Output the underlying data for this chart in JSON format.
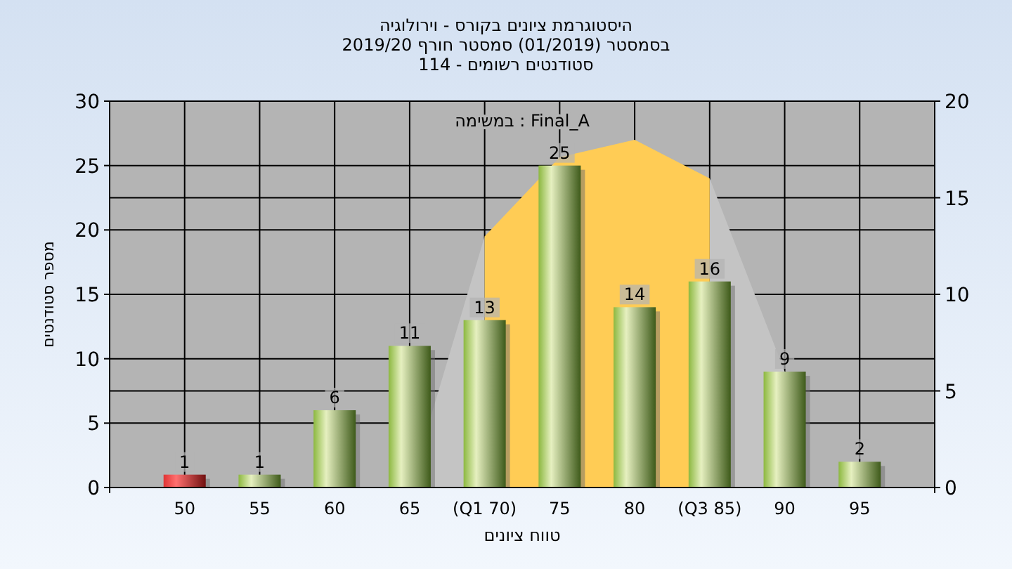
{
  "chart_data": {
    "type": "bar",
    "title": "היסטוגרמת ציונים בקורס - וירולוגיה",
    "subtitle": "בסמסטר  (01/2019)  סמסטר חורף 2019/20\nסטודנטים רשומים - 114",
    "xlabel": "טווח ציונים",
    "ylabel": "מספר סטודנטים",
    "annotations": [
      "במשימה : Final_A"
    ],
    "categories": [
      "50",
      "55",
      "60",
      "65",
      "(Q1 70)",
      "75",
      "80",
      "(Q3 85)",
      "90",
      "95"
    ],
    "series": [
      {
        "type": "area",
        "axis": "y2",
        "color": "#c4c4c4",
        "values": [
          null,
          null,
          null,
          0,
          13,
          null,
          null,
          16,
          6,
          null
        ]
      },
      {
        "type": "area",
        "axis": "y2",
        "color": "#ffcc55",
        "values": [
          null,
          null,
          null,
          null,
          13,
          17.1,
          18,
          16,
          null,
          null
        ]
      },
      {
        "colors": [
          "#e03434",
          "#8cb840",
          "#8cb840",
          "#8cb840",
          "#8cb840",
          "#8cb840",
          "#8cb840",
          "#8cb840",
          "#8cb840",
          "#8cb840"
        ],
        "values": [
          1,
          1,
          6,
          11,
          13,
          25,
          14,
          16,
          9,
          2
        ],
        "value_labels": [
          "1",
          "1",
          "6",
          "11",
          "13",
          "25",
          "14",
          "16",
          "9",
          "2"
        ]
      }
    ],
    "ylim": [
      0,
      30
    ],
    "yticks": [
      0,
      5,
      10,
      15,
      20,
      25,
      30
    ],
    "y2lim": [
      0,
      20
    ],
    "y2ticks": [
      0,
      5,
      10,
      15,
      20
    ],
    "grid": true
  }
}
